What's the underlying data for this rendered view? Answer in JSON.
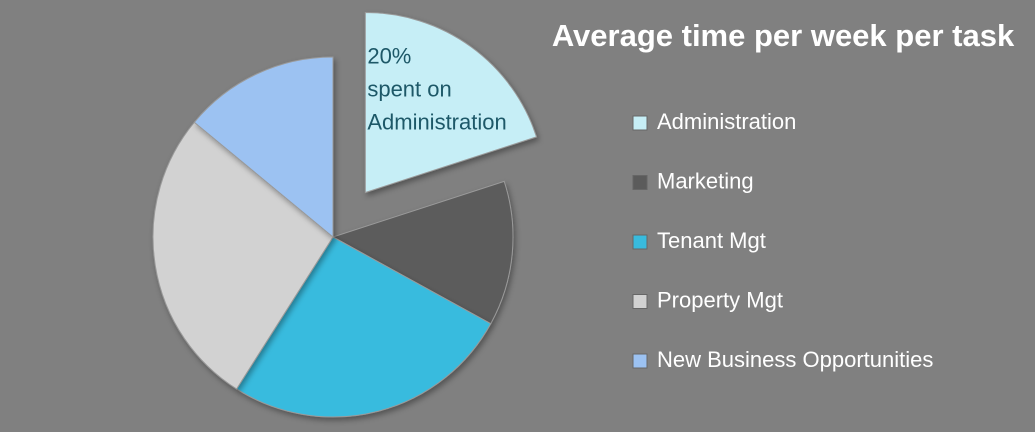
{
  "chart_data": {
    "type": "pie",
    "title": "Average time per week per task",
    "categories": [
      "Administration",
      "Marketing",
      "Tenant Mgt",
      "Property Mgt",
      "New Business Opportunities"
    ],
    "values": [
      20,
      13,
      26,
      27,
      14
    ],
    "value_labels": [
      "20%",
      null,
      null,
      null,
      null
    ],
    "annotation": "spent on Administration",
    "colors": [
      "#c6eef6",
      "#5b5b5b",
      "#38bbde",
      "#d2d2d2",
      "#9cc2f2"
    ],
    "exploded": [
      true,
      false,
      false,
      false,
      false
    ],
    "legend": "right"
  }
}
